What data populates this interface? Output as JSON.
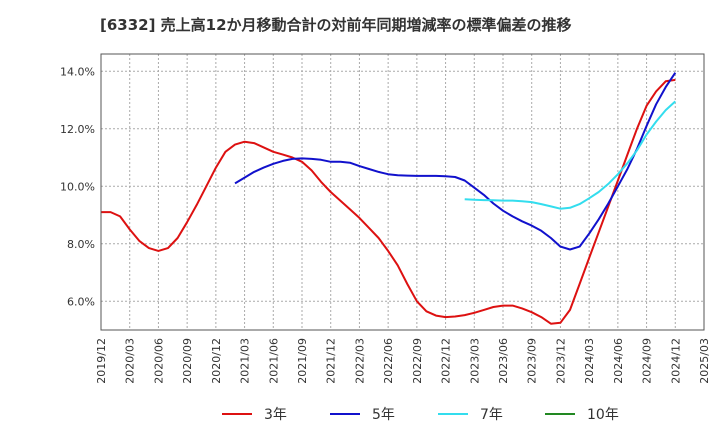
{
  "chart_data": {
    "type": "line",
    "title": "[6332]  売上高12か月移動合計の対前年同期増減率の標準偏差の推移",
    "xlabel": "",
    "ylabel": "",
    "ylim": [
      5.0,
      14.6
    ],
    "yticks": [
      6.0,
      8.0,
      10.0,
      12.0,
      14.0
    ],
    "ytick_labels": [
      "6.0%",
      "8.0%",
      "10.0%",
      "12.0%",
      "14.0%"
    ],
    "xticks": [
      "2019/12",
      "2020/03",
      "2020/06",
      "2020/09",
      "2020/12",
      "2021/03",
      "2021/06",
      "2021/09",
      "2021/12",
      "2022/03",
      "2022/06",
      "2022/09",
      "2022/12",
      "2023/03",
      "2023/06",
      "2023/09",
      "2023/12",
      "2024/03",
      "2024/06",
      "2024/09",
      "2024/12",
      "2025/03"
    ],
    "grid": true,
    "legend_position": "bottom",
    "colors": {
      "3年": "#dd1111",
      "5年": "#1111cc",
      "7年": "#33ddee",
      "10年": "#228822"
    },
    "series": [
      {
        "name": "3年",
        "color": "#dd1111",
        "x": [
          "2019/12",
          "2020/01",
          "2020/02",
          "2020/03",
          "2020/04",
          "2020/05",
          "2020/06",
          "2020/07",
          "2020/08",
          "2020/09",
          "2020/10",
          "2020/11",
          "2020/12",
          "2021/01",
          "2021/02",
          "2021/03",
          "2021/04",
          "2021/05",
          "2021/06",
          "2021/07",
          "2021/08",
          "2021/09",
          "2021/10",
          "2021/11",
          "2021/12",
          "2022/01",
          "2022/02",
          "2022/03",
          "2022/04",
          "2022/05",
          "2022/06",
          "2022/07",
          "2022/08",
          "2022/09",
          "2022/10",
          "2022/11",
          "2022/12",
          "2023/01",
          "2023/02",
          "2023/03",
          "2023/04",
          "2023/05",
          "2023/06",
          "2023/07",
          "2023/08",
          "2023/09",
          "2023/10",
          "2023/11",
          "2023/12",
          "2024/01",
          "2024/02",
          "2024/03",
          "2024/04",
          "2024/05",
          "2024/06",
          "2024/07",
          "2024/08",
          "2024/09",
          "2024/10",
          "2024/11",
          "2024/12"
        ],
        "values": [
          9.1,
          9.1,
          8.95,
          8.5,
          8.1,
          7.85,
          7.75,
          7.85,
          8.2,
          8.75,
          9.35,
          10.0,
          10.65,
          11.2,
          11.45,
          11.55,
          11.5,
          11.35,
          11.2,
          11.1,
          11.0,
          10.85,
          10.55,
          10.15,
          9.8,
          9.5,
          9.2,
          8.9,
          8.55,
          8.2,
          7.75,
          7.25,
          6.6,
          6.0,
          5.65,
          5.5,
          5.45,
          5.47,
          5.52,
          5.6,
          5.7,
          5.8,
          5.85,
          5.85,
          5.75,
          5.62,
          5.45,
          5.22,
          5.25,
          5.7,
          6.6,
          7.5,
          8.4,
          9.3,
          10.2,
          11.1,
          12.0,
          12.8,
          13.3,
          13.65,
          13.7
        ]
      },
      {
        "name": "5年",
        "color": "#1111cc",
        "x": [
          "2021/02",
          "2021/03",
          "2021/04",
          "2021/05",
          "2021/06",
          "2021/07",
          "2021/08",
          "2021/09",
          "2021/10",
          "2021/11",
          "2021/12",
          "2022/01",
          "2022/02",
          "2022/03",
          "2022/04",
          "2022/05",
          "2022/06",
          "2022/07",
          "2022/08",
          "2022/09",
          "2022/10",
          "2022/11",
          "2022/12",
          "2023/01",
          "2023/02",
          "2023/03",
          "2023/04",
          "2023/05",
          "2023/06",
          "2023/07",
          "2023/08",
          "2023/09",
          "2023/10",
          "2023/11",
          "2023/12",
          "2024/01",
          "2024/02",
          "2024/03",
          "2024/04",
          "2024/05",
          "2024/06",
          "2024/07",
          "2024/08",
          "2024/09",
          "2024/10",
          "2024/11",
          "2024/12"
        ],
        "values": [
          10.1,
          10.3,
          10.5,
          10.65,
          10.78,
          10.88,
          10.95,
          10.97,
          10.95,
          10.92,
          10.85,
          10.85,
          10.82,
          10.7,
          10.6,
          10.5,
          10.42,
          10.38,
          10.37,
          10.36,
          10.36,
          10.36,
          10.35,
          10.32,
          10.2,
          9.95,
          9.7,
          9.4,
          9.15,
          8.95,
          8.78,
          8.63,
          8.45,
          8.2,
          7.9,
          7.8,
          7.9,
          8.35,
          8.85,
          9.4,
          10.0,
          10.6,
          11.3,
          12.1,
          12.85,
          13.45,
          13.95
        ]
      },
      {
        "name": "7年",
        "color": "#33ddee",
        "x": [
          "2023/02",
          "2023/03",
          "2023/04",
          "2023/05",
          "2023/06",
          "2023/07",
          "2023/08",
          "2023/09",
          "2023/10",
          "2023/11",
          "2023/12",
          "2024/01",
          "2024/02",
          "2024/03",
          "2024/04",
          "2024/05",
          "2024/06",
          "2024/07",
          "2024/08",
          "2024/09",
          "2024/10",
          "2024/11",
          "2024/12"
        ],
        "values": [
          9.55,
          9.53,
          9.52,
          9.51,
          9.5,
          9.5,
          9.48,
          9.45,
          9.38,
          9.3,
          9.22,
          9.25,
          9.38,
          9.58,
          9.8,
          10.08,
          10.42,
          10.8,
          11.25,
          11.8,
          12.25,
          12.65,
          12.95
        ]
      },
      {
        "name": "10年",
        "color": "#228822",
        "x": [],
        "values": []
      }
    ]
  }
}
